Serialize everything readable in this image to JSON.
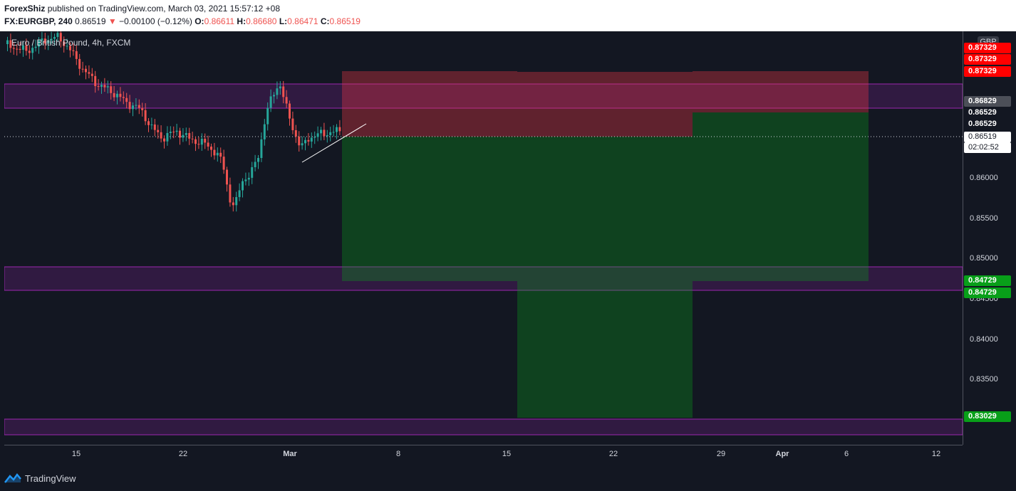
{
  "header": {
    "author": "ForexShiz",
    "published_text": " published on TradingView.com, March 03, 2021 15:57:12 +08",
    "symbol": "FX:EURGBP, 240",
    "last": "0.86519",
    "change": "−0.00100 (−0.12%)",
    "open_label": "O:",
    "open": "0.86611",
    "high_label": "H:",
    "high": "0.86680",
    "low_label": "L:",
    "low": "0.86471",
    "close_label": "C:",
    "close": "0.86519"
  },
  "chart": {
    "title": "Euro / British Pound, 4h, FXCM",
    "currency": "GBP",
    "colors": {
      "background": "#131722",
      "up": "#26a69a",
      "down": "#ef5350",
      "zone": "#9c27b0",
      "stop": "#f23645",
      "target": "#089f19"
    }
  },
  "price_axis": {
    "ticks": [
      "0.86000",
      "0.85500",
      "0.85000",
      "0.84500",
      "0.84000",
      "0.83500"
    ],
    "labels": {
      "top_red_1": "0.87329",
      "top_red_2": "0.87329",
      "top_red_3": "0.87329",
      "gray_1": "0.86829",
      "gray_2": "0.86529",
      "gray_3": "0.86529",
      "current_price": "0.86519",
      "countdown": "02:02:52",
      "green_1": "0.84729",
      "green_2": "0.84729",
      "green_3": "0.83029"
    }
  },
  "time_axis": {
    "labels": [
      "15",
      "22",
      "Mar",
      "8",
      "15",
      "22",
      "29",
      "Apr",
      "6",
      "12"
    ]
  },
  "footer": {
    "brand": "TradingView"
  }
}
